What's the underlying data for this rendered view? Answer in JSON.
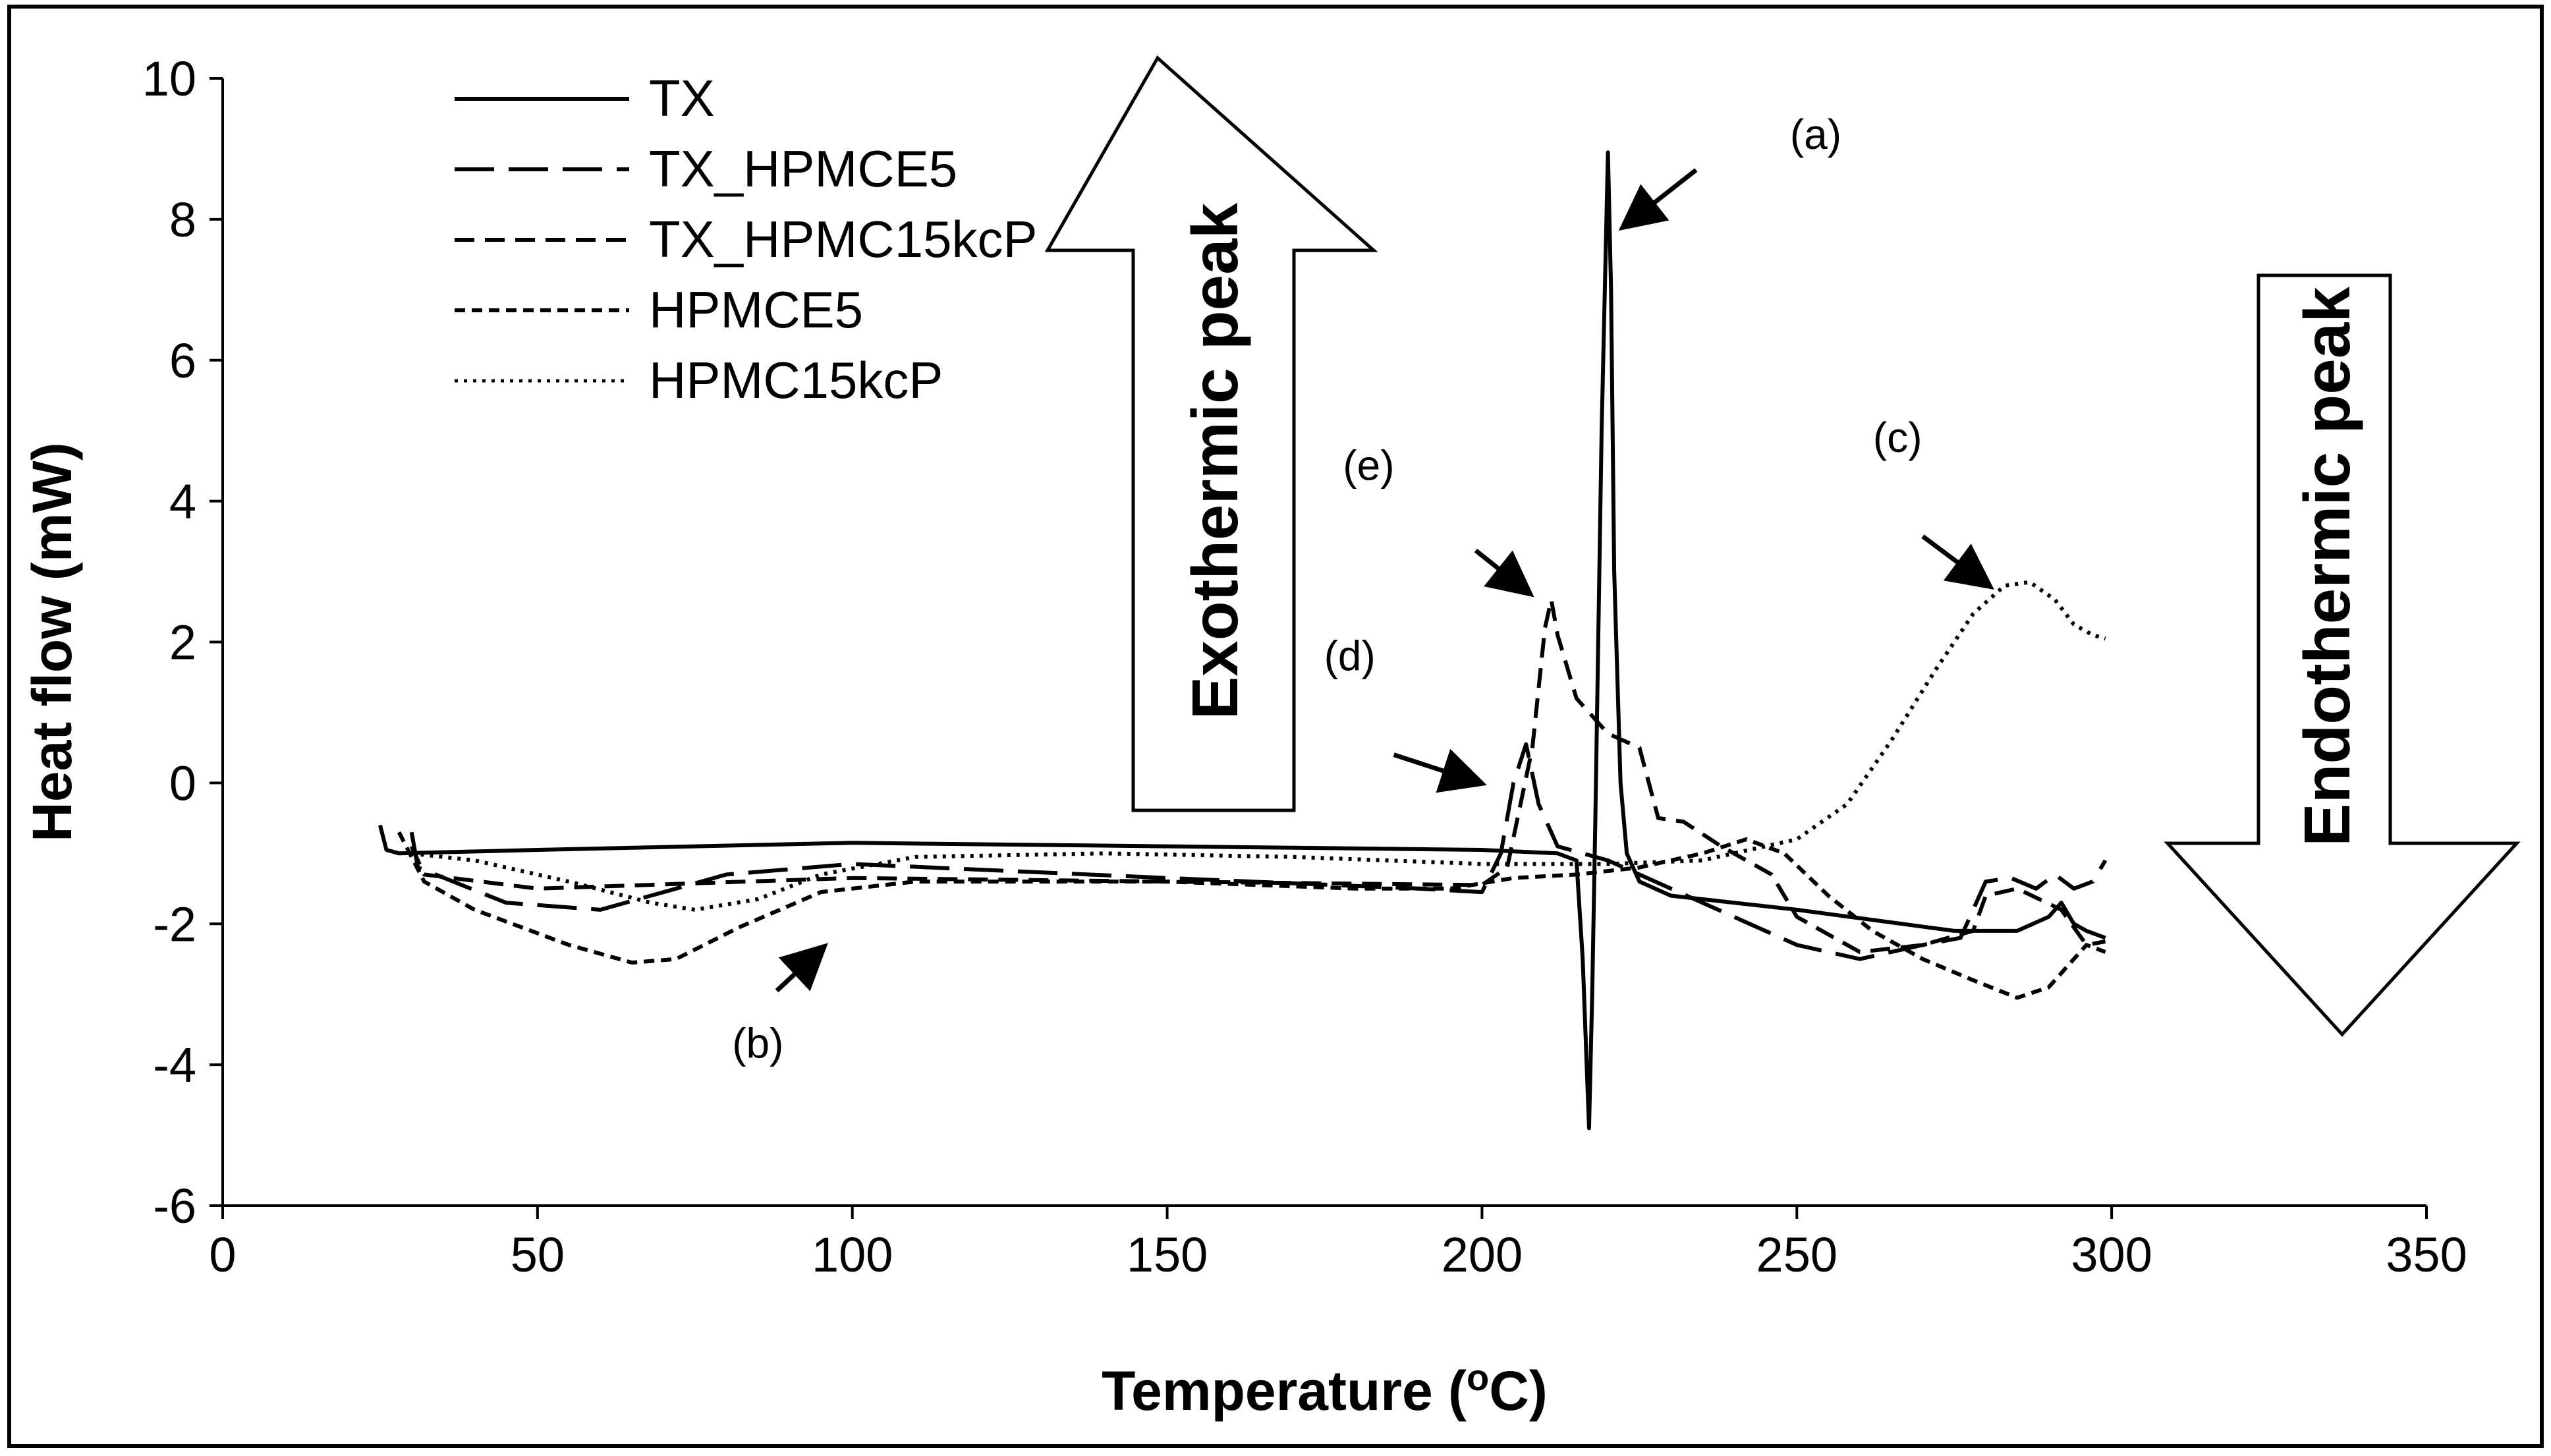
{
  "chart_data": {
    "type": "line",
    "title": "",
    "xlabel": "Temperature (",
    "xlabel_sup": "o",
    "xlabel_suffix": "C)",
    "ylabel": "Heat flow (mW)",
    "xlim": [
      0,
      350
    ],
    "ylim": [
      -6,
      10
    ],
    "x_ticks": [
      0,
      50,
      100,
      150,
      200,
      250,
      300,
      350
    ],
    "y_ticks": [
      -6,
      -4,
      -2,
      0,
      2,
      4,
      6,
      8,
      10
    ],
    "grid": false,
    "legend_position": "top-left",
    "series": [
      {
        "name": "TX",
        "style": "solid",
        "points": [
          [
            25,
            -0.6
          ],
          [
            26,
            -0.95
          ],
          [
            28,
            -1.0
          ],
          [
            50,
            -0.95
          ],
          [
            100,
            -0.85
          ],
          [
            150,
            -0.9
          ],
          [
            200,
            -0.95
          ],
          [
            212,
            -1.0
          ],
          [
            215,
            -1.1
          ],
          [
            216,
            -2.5
          ],
          [
            217,
            -4.9
          ],
          [
            217.5,
            -3.0
          ],
          [
            218,
            -0.5
          ],
          [
            219,
            5.0
          ],
          [
            220,
            8.95
          ],
          [
            220.5,
            7.0
          ],
          [
            221,
            3.0
          ],
          [
            222,
            0.0
          ],
          [
            223,
            -1.0
          ],
          [
            225,
            -1.4
          ],
          [
            230,
            -1.6
          ],
          [
            250,
            -1.8
          ],
          [
            275,
            -2.1
          ],
          [
            285,
            -2.1
          ],
          [
            290,
            -1.9
          ],
          [
            292,
            -1.7
          ],
          [
            294,
            -2.0
          ],
          [
            296,
            -2.1
          ],
          [
            299,
            -2.2
          ]
        ]
      },
      {
        "name": "TX_HPMCE5",
        "style": "longdash",
        "points": [
          [
            30,
            -0.7
          ],
          [
            31,
            -1.2
          ],
          [
            45,
            -1.7
          ],
          [
            60,
            -1.8
          ],
          [
            80,
            -1.3
          ],
          [
            100,
            -1.15
          ],
          [
            150,
            -1.35
          ],
          [
            190,
            -1.5
          ],
          [
            200,
            -1.55
          ],
          [
            203,
            -1.0
          ],
          [
            205,
            0.0
          ],
          [
            207,
            0.55
          ],
          [
            209,
            -0.3
          ],
          [
            212,
            -0.9
          ],
          [
            220,
            -1.1
          ],
          [
            230,
            -1.5
          ],
          [
            240,
            -1.9
          ],
          [
            250,
            -2.3
          ],
          [
            260,
            -2.5
          ],
          [
            270,
            -2.3
          ],
          [
            276,
            -2.2
          ],
          [
            280,
            -1.4
          ],
          [
            284,
            -1.35
          ],
          [
            288,
            -1.5
          ],
          [
            291,
            -1.3
          ],
          [
            294,
            -1.5
          ],
          [
            297,
            -1.4
          ],
          [
            299,
            -1.1
          ]
        ]
      },
      {
        "name": "TX_HPMC15kcP",
        "style": "dash",
        "points": [
          [
            30,
            -0.9
          ],
          [
            32,
            -1.3
          ],
          [
            50,
            -1.5
          ],
          [
            100,
            -1.35
          ],
          [
            150,
            -1.4
          ],
          [
            200,
            -1.45
          ],
          [
            204,
            -1.2
          ],
          [
            208,
            0.5
          ],
          [
            210,
            2.2
          ],
          [
            211,
            2.6
          ],
          [
            212,
            2.1
          ],
          [
            215,
            1.2
          ],
          [
            220,
            0.7
          ],
          [
            225,
            0.5
          ],
          [
            228,
            -0.5
          ],
          [
            232,
            -0.55
          ],
          [
            238,
            -0.9
          ],
          [
            242,
            -1.1
          ],
          [
            246,
            -1.3
          ],
          [
            250,
            -1.9
          ],
          [
            260,
            -2.4
          ],
          [
            270,
            -2.3
          ],
          [
            278,
            -2.1
          ],
          [
            280,
            -1.6
          ],
          [
            285,
            -1.5
          ],
          [
            292,
            -1.8
          ],
          [
            296,
            -2.3
          ],
          [
            299,
            -2.25
          ]
        ]
      },
      {
        "name": "HPMCE5",
        "style": "shortdash",
        "points": [
          [
            28,
            -0.7
          ],
          [
            32,
            -1.4
          ],
          [
            40,
            -1.8
          ],
          [
            55,
            -2.3
          ],
          [
            65,
            -2.55
          ],
          [
            72,
            -2.5
          ],
          [
            82,
            -2.05
          ],
          [
            95,
            -1.55
          ],
          [
            110,
            -1.4
          ],
          [
            150,
            -1.4
          ],
          [
            180,
            -1.5
          ],
          [
            195,
            -1.5
          ],
          [
            205,
            -1.35
          ],
          [
            215,
            -1.3
          ],
          [
            225,
            -1.2
          ],
          [
            235,
            -1.0
          ],
          [
            242,
            -0.8
          ],
          [
            248,
            -1.0
          ],
          [
            255,
            -1.6
          ],
          [
            262,
            -2.1
          ],
          [
            270,
            -2.5
          ],
          [
            278,
            -2.8
          ],
          [
            285,
            -3.05
          ],
          [
            290,
            -2.9
          ],
          [
            293,
            -2.6
          ],
          [
            296,
            -2.3
          ],
          [
            299,
            -2.4
          ]
        ]
      },
      {
        "name": "HPMC15kcP",
        "style": "dotted",
        "points": [
          [
            30,
            -1.0
          ],
          [
            40,
            -1.1
          ],
          [
            55,
            -1.4
          ],
          [
            68,
            -1.7
          ],
          [
            75,
            -1.8
          ],
          [
            85,
            -1.65
          ],
          [
            95,
            -1.3
          ],
          [
            110,
            -1.05
          ],
          [
            140,
            -1.0
          ],
          [
            170,
            -1.05
          ],
          [
            200,
            -1.15
          ],
          [
            220,
            -1.15
          ],
          [
            235,
            -1.1
          ],
          [
            250,
            -0.8
          ],
          [
            258,
            -0.3
          ],
          [
            265,
            0.6
          ],
          [
            272,
            1.6
          ],
          [
            278,
            2.4
          ],
          [
            283,
            2.8
          ],
          [
            287,
            2.85
          ],
          [
            291,
            2.6
          ],
          [
            294,
            2.25
          ],
          [
            297,
            2.1
          ],
          [
            299,
            2.05
          ]
        ]
      }
    ],
    "annotations": [
      {
        "text": "(a)",
        "x": 253,
        "y": 9.0
      },
      {
        "text": "(b)",
        "x": 85,
        "y": -3.9
      },
      {
        "text": "(c)",
        "x": 266,
        "y": 4.7
      },
      {
        "text": "(d)",
        "x": 179,
        "y": 1.6
      },
      {
        "text": "(e)",
        "x": 182,
        "y": 4.3
      }
    ],
    "arrows": [
      {
        "from": [
          234,
          8.7
        ],
        "to": [
          224,
          8.0
        ]
      },
      {
        "from": [
          88,
          -2.95
        ],
        "to": [
          94,
          -2.45
        ]
      },
      {
        "from": [
          270,
          3.5
        ],
        "to": [
          279,
          2.9
        ]
      },
      {
        "from": [
          186,
          0.4
        ],
        "to": [
          198,
          0.05
        ]
      },
      {
        "from": [
          199,
          3.3
        ],
        "to": [
          206,
          2.8
        ]
      }
    ],
    "peak_arrows": [
      {
        "label": "Exothermic peak",
        "direction": "up"
      },
      {
        "label": "Endothermic peak",
        "direction": "down"
      }
    ]
  }
}
